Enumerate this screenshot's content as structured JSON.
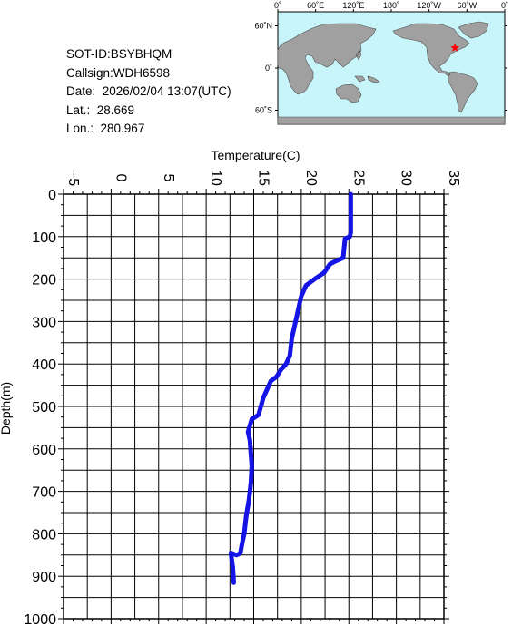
{
  "header": {
    "sot_id": "SOT-ID:BSYBHQM",
    "callsign": "Callsign:WDH6598",
    "date": "Date:  2026/02/04 13:07(UTC)",
    "lat": "Lat.:  28.669",
    "lon": "Lon.:  280.967"
  },
  "map": {
    "lon_labels": [
      "0˚",
      "60˚E",
      "120˚E",
      "180˚",
      "120˚W",
      "60˚W",
      "0˚"
    ],
    "lat_labels": [
      "60˚N",
      "0˚",
      "60˚S"
    ],
    "ocean_color": "#c8f5fa",
    "land_color": "#a0a0a0",
    "marker_color": "#ff0000",
    "marker_lat": 28.669,
    "marker_lon": 280.967
  },
  "chart_data": {
    "type": "line",
    "xlabel": "Temperature(C)",
    "ylabel": "Depth(m)",
    "xlim": [
      -5,
      35
    ],
    "ylim": [
      1000,
      0
    ],
    "x_ticks": [
      -5,
      0,
      5,
      10,
      15,
      20,
      25,
      30,
      35
    ],
    "y_ticks": [
      0,
      100,
      200,
      300,
      400,
      500,
      600,
      700,
      800,
      900,
      1000
    ],
    "grid": true,
    "line_color": "#1414e6",
    "series": [
      {
        "temperature": [
          25.2,
          25.2,
          25.2,
          25.1,
          24.6,
          24.4,
          23.4,
          23.0,
          22.4,
          21.4,
          20.5,
          20.0,
          19.7,
          19.4,
          19.0,
          18.8,
          18.4,
          17.8,
          17.4,
          16.8,
          16.0,
          15.5,
          14.8,
          14.6,
          14.4,
          14.6,
          14.8,
          14.7,
          14.5,
          14.2,
          14.0,
          13.8,
          13.6,
          13.4,
          13.2,
          12.6,
          12.8,
          12.9
        ],
        "depth": [
          0,
          50,
          90,
          100,
          105,
          150,
          160,
          165,
          185,
          200,
          215,
          240,
          270,
          300,
          340,
          380,
          400,
          415,
          430,
          440,
          480,
          520,
          530,
          545,
          560,
          580,
          640,
          680,
          720,
          760,
          800,
          820,
          845,
          848,
          850,
          845,
          880,
          915
        ]
      }
    ]
  }
}
